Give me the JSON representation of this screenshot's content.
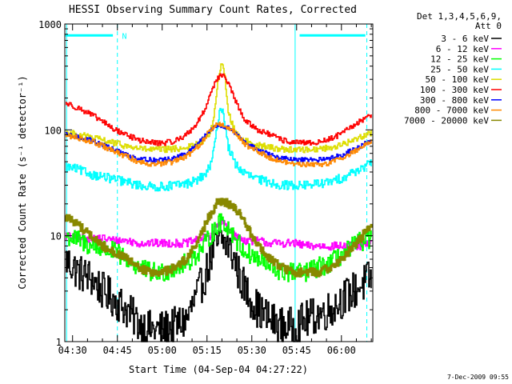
{
  "chart_data": {
    "type": "line",
    "title": "HESSI Observing Summary Count Rates, Corrected",
    "xlabel": "Start Time (04-Sep-04 04:27:22)",
    "ylabel": "Corrected Count Rate (s⁻¹ detector⁻¹)",
    "yscale": "log",
    "xlim": [
      27.4,
      130.5
    ],
    "ylim": [
      1,
      1000
    ],
    "x_ticks": [
      {
        "value": 30,
        "label": "04:30"
      },
      {
        "value": 45,
        "label": "04:45"
      },
      {
        "value": 60,
        "label": "05:00"
      },
      {
        "value": 75,
        "label": "05:15"
      },
      {
        "value": 90,
        "label": "05:30"
      },
      {
        "value": 105,
        "label": "05:45"
      },
      {
        "value": 120,
        "label": "06:00"
      }
    ],
    "y_ticks": [
      {
        "value": 1,
        "label": "1"
      },
      {
        "value": 10,
        "label": "10"
      },
      {
        "value": 100,
        "label": "100"
      },
      {
        "value": 1000,
        "label": "1000"
      }
    ],
    "legend_header": [
      "Det 1,3,4,5,6,9,",
      "Att 0"
    ],
    "legend_placement": "right",
    "series": [
      {
        "name": "3 - 6 keV",
        "color": "#000000",
        "width": 1.6,
        "x": [
          27.5,
          32,
          36,
          40,
          44,
          48,
          52,
          56,
          60,
          64,
          68,
          71,
          74,
          76,
          78,
          80,
          82,
          84,
          86,
          88,
          92,
          96,
          100,
          104,
          108,
          112,
          116,
          120,
          124,
          127,
          130
        ],
        "y": [
          6,
          4.5,
          4,
          3,
          2.5,
          2,
          1.5,
          1.3,
          1.3,
          1.4,
          1.6,
          2.5,
          4,
          6,
          8,
          9,
          8,
          6,
          4,
          3,
          2,
          1.6,
          1.4,
          1.4,
          1.6,
          1.8,
          2,
          2.5,
          3,
          3.5,
          4
        ]
      },
      {
        "name": "6 - 12 keV",
        "color": "#ff00ff",
        "width": 1.6,
        "x": [
          27.5,
          32,
          36,
          40,
          44,
          48,
          52,
          56,
          60,
          64,
          68,
          71,
          74,
          76,
          78,
          80,
          82,
          84,
          86,
          88,
          92,
          96,
          100,
          104,
          108,
          112,
          116,
          120,
          124,
          127,
          130
        ],
        "y": [
          10,
          9.5,
          9.5,
          9.5,
          9,
          9,
          8.5,
          8.5,
          8.5,
          8.5,
          8.5,
          9,
          9.5,
          10,
          12,
          13.5,
          12,
          10,
          9.5,
          9,
          9,
          8.5,
          8.5,
          8.5,
          8,
          8,
          8,
          8,
          8,
          8,
          8.5
        ]
      },
      {
        "name": "12 - 25 keV",
        "color": "#00ff00",
        "width": 1.6,
        "x": [
          27.5,
          32,
          36,
          40,
          44,
          48,
          52,
          56,
          60,
          64,
          68,
          71,
          74,
          76,
          78,
          80,
          82,
          84,
          86,
          88,
          92,
          96,
          100,
          104,
          108,
          112,
          116,
          120,
          124,
          127,
          130
        ],
        "y": [
          10,
          9,
          8,
          7.5,
          7,
          6,
          5,
          4.5,
          4.5,
          5,
          5.5,
          6.5,
          8,
          10,
          12,
          14,
          12,
          10,
          8,
          7,
          6,
          5,
          4.5,
          4.5,
          4.5,
          5,
          5.5,
          6.5,
          8,
          9,
          9.5
        ]
      },
      {
        "name": "25 - 50 keV",
        "color": "#00ffff",
        "width": 1.6,
        "x": [
          27.5,
          32,
          36,
          40,
          44,
          48,
          52,
          56,
          60,
          64,
          68,
          71,
          74,
          76,
          77,
          78,
          79,
          80,
          81,
          82,
          84,
          86,
          88,
          92,
          96,
          100,
          104,
          108,
          112,
          116,
          120,
          124,
          127,
          130
        ],
        "y": [
          45,
          42,
          38,
          36,
          34,
          32,
          30,
          29,
          29,
          30,
          31,
          33,
          37,
          45,
          60,
          90,
          150,
          160,
          110,
          70,
          50,
          42,
          38,
          34,
          32,
          30,
          30,
          30,
          31,
          32,
          35,
          40,
          44,
          48
        ]
      },
      {
        "name": "50 - 100 keV",
        "color": "#dddd00",
        "width": 1.6,
        "x": [
          27.5,
          32,
          36,
          40,
          44,
          48,
          52,
          56,
          60,
          64,
          68,
          71,
          74,
          76,
          77,
          78,
          79,
          80,
          81,
          82,
          84,
          86,
          88,
          92,
          96,
          100,
          104,
          108,
          112,
          116,
          120,
          124,
          127,
          130
        ],
        "y": [
          95,
          90,
          85,
          80,
          75,
          70,
          67,
          65,
          65,
          66,
          68,
          72,
          80,
          95,
          120,
          200,
          350,
          420,
          300,
          150,
          100,
          85,
          78,
          72,
          68,
          66,
          65,
          65,
          66,
          68,
          72,
          80,
          88,
          95
        ]
      },
      {
        "name": "100 - 300 keV",
        "color": "#ff0000",
        "width": 1.6,
        "x": [
          27.5,
          32,
          36,
          40,
          44,
          48,
          52,
          56,
          60,
          64,
          68,
          71,
          74,
          76,
          78,
          80,
          82,
          84,
          86,
          88,
          92,
          96,
          100,
          104,
          108,
          112,
          116,
          120,
          124,
          127,
          130
        ],
        "y": [
          180,
          160,
          140,
          120,
          100,
          90,
          80,
          76,
          75,
          78,
          90,
          110,
          150,
          220,
          300,
          330,
          280,
          200,
          150,
          120,
          100,
          90,
          80,
          76,
          75,
          76,
          82,
          92,
          110,
          125,
          140
        ]
      },
      {
        "name": "300 - 800 keV",
        "color": "#0000ff",
        "width": 1.6,
        "x": [
          27.5,
          32,
          36,
          40,
          44,
          48,
          52,
          56,
          60,
          64,
          68,
          71,
          74,
          76,
          78,
          80,
          82,
          84,
          86,
          88,
          92,
          96,
          100,
          104,
          108,
          112,
          116,
          120,
          124,
          127,
          130
        ],
        "y": [
          90,
          85,
          80,
          72,
          65,
          58,
          54,
          52,
          52,
          54,
          60,
          70,
          85,
          100,
          110,
          110,
          105,
          95,
          85,
          75,
          65,
          58,
          54,
          52,
          52,
          52,
          54,
          58,
          65,
          72,
          80
        ]
      },
      {
        "name": "800 - 7000 keV",
        "color": "#ff8800",
        "width": 1.6,
        "x": [
          27.5,
          32,
          36,
          40,
          44,
          48,
          52,
          56,
          60,
          64,
          68,
          71,
          74,
          76,
          78,
          80,
          82,
          84,
          86,
          88,
          92,
          96,
          100,
          104,
          108,
          112,
          116,
          120,
          124,
          127,
          130
        ],
        "y": [
          88,
          84,
          78,
          70,
          62,
          56,
          50,
          48,
          48,
          50,
          56,
          66,
          82,
          100,
          112,
          112,
          106,
          95,
          84,
          72,
          62,
          55,
          50,
          48,
          47,
          47,
          49,
          54,
          62,
          70,
          78
        ]
      },
      {
        "name": "7000 - 20000 keV",
        "color": "#888800",
        "width": 3,
        "x": [
          27.5,
          30,
          33,
          36,
          40,
          44,
          48,
          52,
          56,
          60,
          64,
          68,
          71,
          74,
          76,
          78,
          80,
          82,
          84,
          86,
          88,
          90,
          92,
          96,
          100,
          104,
          108,
          112,
          116,
          120,
          124,
          127,
          130
        ],
        "y": [
          15,
          14,
          12,
          10,
          8,
          7,
          6,
          5,
          4.5,
          4.5,
          5,
          6,
          8,
          12,
          16,
          20,
          21,
          20,
          18,
          16,
          13,
          10,
          8,
          6,
          5,
          4.5,
          4.5,
          4.5,
          5,
          6,
          8,
          10,
          13
        ]
      }
    ],
    "overlays": {
      "color": "#00ffff",
      "solid_verticals": [
        28,
        104.5
      ],
      "dashed_verticals": [
        45,
        128.5
      ],
      "bar_segments": [
        {
          "from": 27.6,
          "to": 43.5,
          "value": 780
        },
        {
          "from": 106,
          "to": 128,
          "value": 780
        }
      ],
      "bar_label": {
        "text": "N",
        "x": 46,
        "value": 780
      }
    },
    "timestamp": "7-Dec-2009 09:55"
  }
}
